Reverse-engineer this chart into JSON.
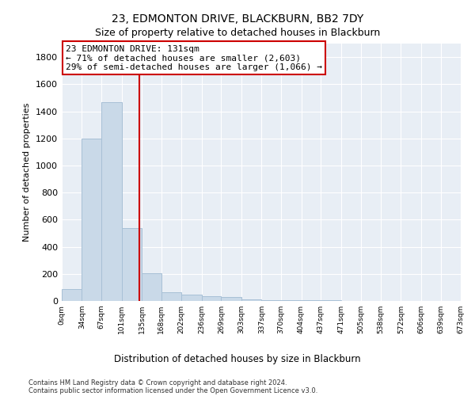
{
  "title1": "23, EDMONTON DRIVE, BLACKBURN, BB2 7DY",
  "title2": "Size of property relative to detached houses in Blackburn",
  "xlabel": "Distribution of detached houses by size in Blackburn",
  "ylabel": "Number of detached properties",
  "bar_edges": [
    0,
    34,
    67,
    101,
    135,
    168,
    202,
    236,
    269,
    303,
    337,
    370,
    404,
    437,
    471,
    505,
    538,
    572,
    606,
    639,
    673
  ],
  "bar_heights": [
    90,
    1200,
    1470,
    540,
    205,
    65,
    47,
    35,
    28,
    12,
    7,
    5,
    4,
    3,
    2,
    1,
    1,
    0,
    0,
    0
  ],
  "bar_color": "#c9d9e8",
  "bar_edgecolor": "#a8c0d6",
  "property_size": 131,
  "property_line_color": "#cc0000",
  "annotation_line1": "23 EDMONTON DRIVE: 131sqm",
  "annotation_line2": "← 71% of detached houses are smaller (2,603)",
  "annotation_line3": "29% of semi-detached houses are larger (1,066) →",
  "annotation_box_color": "#ffffff",
  "annotation_box_edgecolor": "#cc0000",
  "ylim_max": 1900,
  "yticks": [
    0,
    200,
    400,
    600,
    800,
    1000,
    1200,
    1400,
    1600,
    1800
  ],
  "xtick_labels": [
    "0sqm",
    "34sqm",
    "67sqm",
    "101sqm",
    "135sqm",
    "168sqm",
    "202sqm",
    "236sqm",
    "269sqm",
    "303sqm",
    "337sqm",
    "370sqm",
    "404sqm",
    "437sqm",
    "471sqm",
    "505sqm",
    "538sqm",
    "572sqm",
    "606sqm",
    "639sqm",
    "673sqm"
  ],
  "footer1": "Contains HM Land Registry data © Crown copyright and database right 2024.",
  "footer2": "Contains public sector information licensed under the Open Government Licence v3.0.",
  "plot_bg_color": "#e8eef5",
  "title1_fontsize": 10,
  "title2_fontsize": 9
}
